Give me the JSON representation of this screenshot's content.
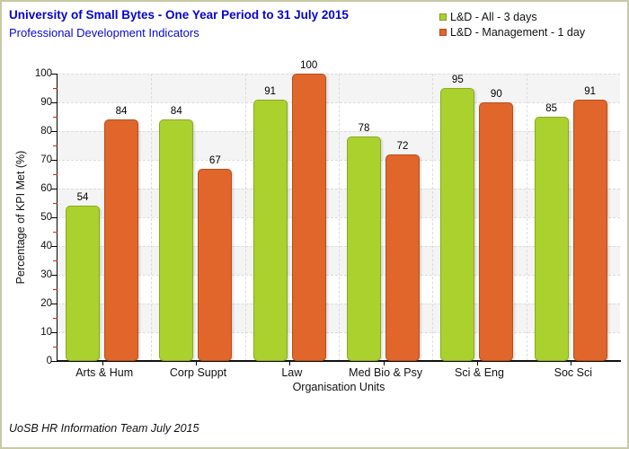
{
  "header": {
    "title": "University of Small Bytes - One Year Period to 31 July 2015",
    "subtitle": "Professional Development Indicators"
  },
  "footer": {
    "credit": "UoSB HR Information Team July 2015"
  },
  "colors": {
    "title_blue": "#0505cd",
    "series_all_green": "#aad12e",
    "series_all_green_border": "#8aaa1f",
    "series_mgmt_orange": "#e0662b",
    "series_mgmt_orange_border": "#b94e15",
    "minor_tick_red": "#cc2222",
    "gridline": "#dcdcdc",
    "band_shade": "#f4f4f4"
  },
  "chart_data": {
    "type": "bar",
    "title": "University of Small Bytes - One Year Period to 31 July 2015",
    "subtitle": "Professional Development Indicators",
    "categories": [
      "Arts & Hum",
      "Corp Suppt",
      "Law",
      "Med Bio & Psy",
      "Sci & Eng",
      "Soc Sci"
    ],
    "series": [
      {
        "name": "L&D - All - 3 days",
        "values": [
          54,
          84,
          91,
          78,
          95,
          85
        ]
      },
      {
        "name": "L&D - Management - 1 day",
        "values": [
          84,
          67,
          100,
          72,
          90,
          91
        ]
      }
    ],
    "xlabel": "Organisation Units",
    "ylabel": "Percentage of KPI Met (%)",
    "ylim": [
      0,
      100
    ],
    "ytick_step": 10,
    "ytick_labels": [
      "0",
      "10",
      "20",
      "30",
      "40",
      "50",
      "60",
      "70",
      "80",
      "90",
      "100"
    ],
    "minor_tick_step": 5,
    "grid": "dashed",
    "legend_position": "top-right",
    "data_labels": true
  }
}
